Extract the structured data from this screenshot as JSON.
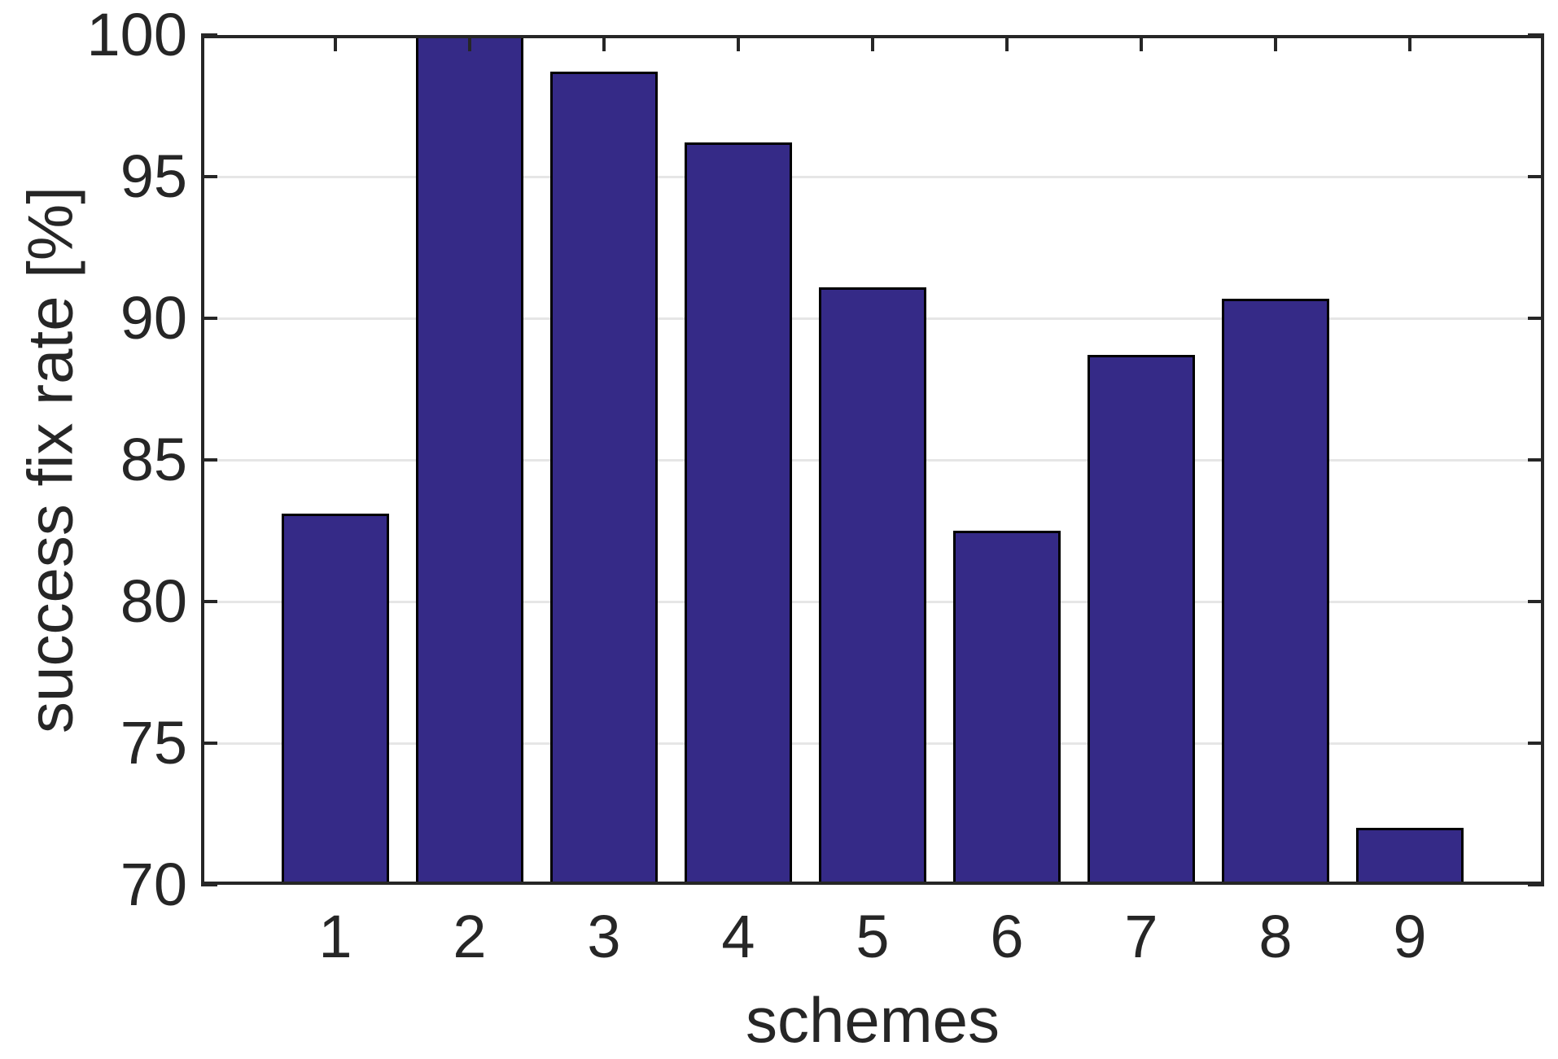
{
  "chart_data": {
    "type": "bar",
    "title": "",
    "xlabel": "schemes",
    "ylabel": "success fix rate [%]",
    "categories": [
      "1",
      "2",
      "3",
      "4",
      "5",
      "6",
      "7",
      "8",
      "9"
    ],
    "values": [
      83.1,
      100.0,
      98.7,
      96.2,
      91.1,
      82.5,
      88.7,
      90.7,
      72.0
    ],
    "ylim": [
      70,
      100
    ],
    "yticks": [
      70,
      75,
      80,
      85,
      90,
      95,
      100
    ],
    "grid": "horizontal-only",
    "legend": "none",
    "bar_color": "#352a87",
    "bar_edge_color": "#000000",
    "axis_color": "#262626",
    "grid_color": "#e6e6e6",
    "tick_label_color": "#262626",
    "background_color": "#ffffff"
  }
}
